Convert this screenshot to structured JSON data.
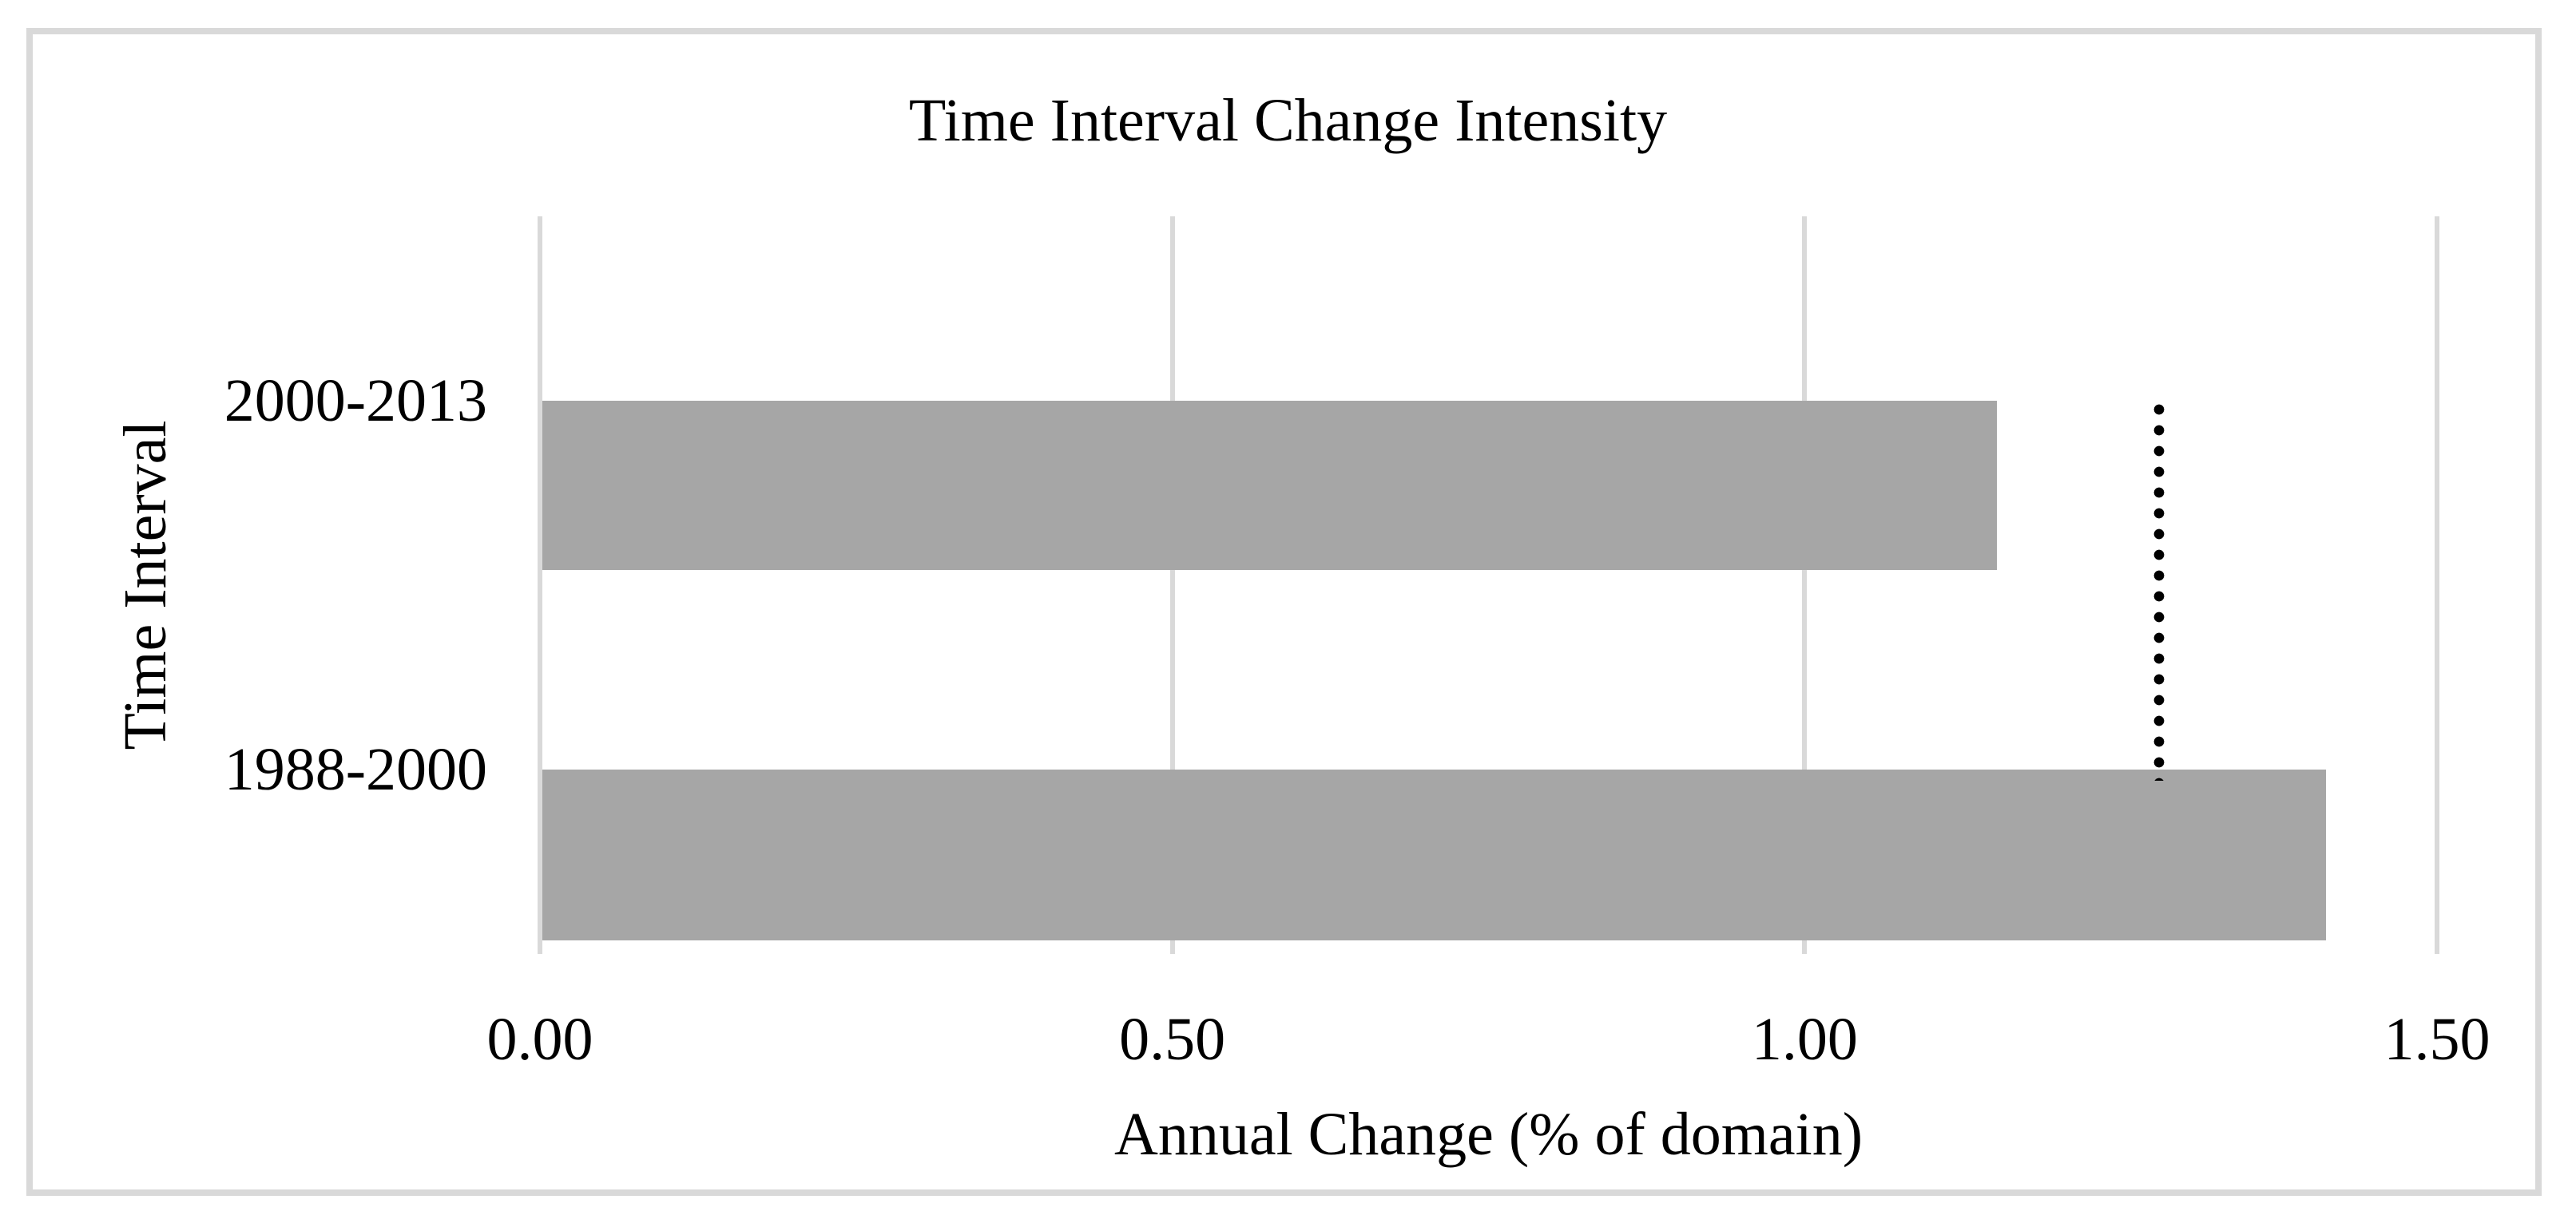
{
  "chart_data": {
    "type": "bar",
    "orientation": "horizontal",
    "title": "Time Interval Change Intensity",
    "xlabel": "Annual Change (% of domain)",
    "ylabel": "Time Interval",
    "categories": [
      "2000-2013",
      "1988-2000"
    ],
    "values": [
      1.15,
      1.41
    ],
    "xlim": [
      0,
      1.5
    ],
    "xtick_values": [
      0,
      0.5,
      1.0,
      1.5
    ],
    "xtick_labels": [
      "0.00",
      "0.50",
      "1.00",
      "1.50"
    ],
    "reference_line": {
      "value": 1.28,
      "style": "dotted"
    },
    "grid": true,
    "legend": false,
    "colors": {
      "bar": "#a6a6a6",
      "gridline": "#d9d9d9",
      "frame": "#d9d9d9",
      "text": "#000000",
      "reference_line": "#000000",
      "background": "#ffffff"
    }
  }
}
